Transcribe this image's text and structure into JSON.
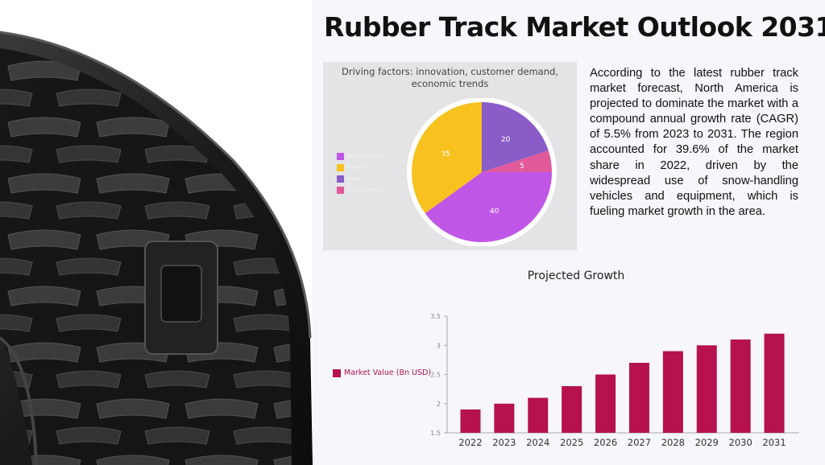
{
  "title": "Rubber Track Market Outlook 2031",
  "image": {
    "icon": "rubber-track-image"
  },
  "paragraph": "According to the latest rubber track market forecast, North America is projected to dominate the market with a compound annual growth rate (CAGR) of 5.5% from 2023 to 2031. The region accounted for 39.6% of the market share in 2022, driven by the widespread use of snow-handling vehicles and equipment, which is fueling market growth in the area.",
  "chart_data": [
    {
      "type": "pie",
      "title": "Driving factors: innovation, customer demand, economic trends",
      "slices": [
        {
          "label": "North America",
          "value": 40,
          "color": "#c056e6"
        },
        {
          "label": "Europe",
          "value": 35,
          "color": "#f7c21f"
        },
        {
          "label": "Asia",
          "value": 20,
          "color": "#8a5cc7"
        },
        {
          "label": "Latin America",
          "value": 5,
          "color": "#e0599b"
        }
      ],
      "legend_position": "left"
    },
    {
      "type": "bar",
      "title": "Projected Growth",
      "categories": [
        "2022",
        "2023",
        "2024",
        "2025",
        "2026",
        "2027",
        "2028",
        "2029",
        "2030",
        "2031"
      ],
      "series": [
        {
          "name": "Market Value (Bn USD)",
          "values": [
            1.9,
            2.0,
            2.1,
            2.3,
            2.5,
            2.7,
            2.9,
            3.0,
            3.1,
            3.2
          ],
          "color": "#b5124e"
        }
      ],
      "yticks": [
        "1.5",
        "2",
        "2.5",
        "3",
        "3.5"
      ],
      "ylim": [
        1.5,
        3.5
      ],
      "legend_position": "left"
    }
  ]
}
